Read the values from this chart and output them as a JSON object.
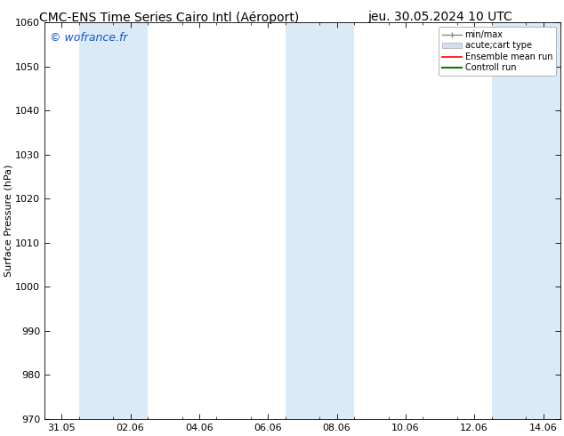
{
  "title_left": "CMC-ENS Time Series Cairo Intl (Aéroport)",
  "title_right": "jeu. 30.05.2024 10 UTC",
  "ylabel": "Surface Pressure (hPa)",
  "ylim": [
    970,
    1060
  ],
  "yticks": [
    970,
    980,
    990,
    1000,
    1010,
    1020,
    1030,
    1040,
    1050,
    1060
  ],
  "xlim_days": [
    0,
    15
  ],
  "xtick_labels": [
    "31.05",
    "02.06",
    "04.06",
    "06.06",
    "08.06",
    "10.06",
    "12.06",
    "14.06"
  ],
  "xtick_positions": [
    0.5,
    2.5,
    4.5,
    6.5,
    8.5,
    10.5,
    12.5,
    14.5
  ],
  "shaded_bands": [
    {
      "x_start": 1,
      "x_end": 3
    },
    {
      "x_start": 7,
      "x_end": 9
    },
    {
      "x_start": 13,
      "x_end": 15
    }
  ],
  "shade_color": "#daeaf7",
  "background_color": "#ffffff",
  "plot_bg_color": "#ffffff",
  "watermark_text": "© wofrance.fr",
  "watermark_color": "#1155cc",
  "grid_color": "#cccccc",
  "tick_color": "#000000",
  "font_size": 8,
  "title_font_size": 10
}
